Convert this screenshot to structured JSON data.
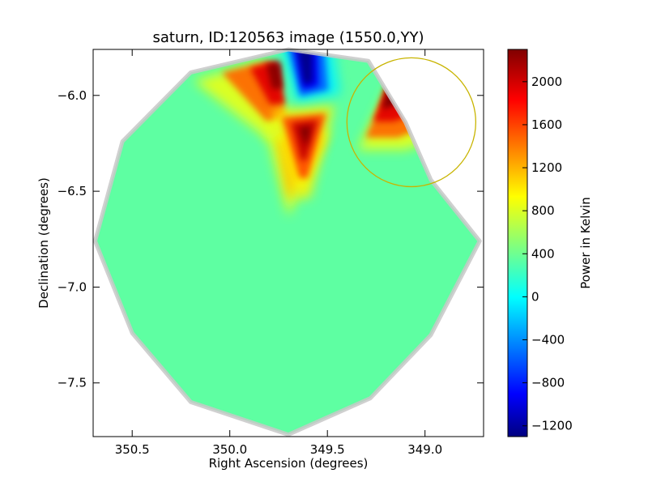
{
  "chart_data": {
    "type": "heatmap",
    "title": "saturn, ID:120563 image (1550.0,YY)",
    "xlabel": "Right Ascension (degrees)",
    "ylabel": "Declination (degrees)",
    "xlim": [
      350.7,
      348.7
    ],
    "ylim": [
      -7.78,
      -5.76
    ],
    "x_ticks": [
      350.5,
      350.0,
      349.5,
      349.0
    ],
    "x_tick_labels": [
      "350.5",
      "350.0",
      "349.5",
      "349.0"
    ],
    "y_ticks": [
      -6.0,
      -6.5,
      -7.0,
      -7.5
    ],
    "y_tick_labels": [
      "−6.0",
      "−6.5",
      "−7.0",
      "−7.5"
    ],
    "colorbar": {
      "label": "Power in Kelvin",
      "colormap": "jet",
      "range": [
        -1300,
        2300
      ],
      "ticks": [
        -1200,
        -800,
        -400,
        0,
        400,
        800,
        1200,
        1600,
        2000
      ],
      "tick_labels": [
        "−1200",
        "−800",
        "−400",
        "0",
        "400",
        "800",
        "1200",
        "1600",
        "2000"
      ]
    },
    "footprint": {
      "shape": "polygon",
      "center": [
        349.7,
        -6.76
      ],
      "background_value": 380,
      "vertices": [
        [
          349.7,
          -5.76
        ],
        [
          349.29,
          -5.82
        ],
        [
          349.1,
          -6.14
        ],
        [
          348.97,
          -6.44
        ],
        [
          348.72,
          -6.76
        ],
        [
          348.97,
          -7.25
        ],
        [
          349.28,
          -7.58
        ],
        [
          349.7,
          -7.77
        ],
        [
          350.2,
          -7.6
        ],
        [
          350.5,
          -7.24
        ],
        [
          350.69,
          -6.76
        ],
        [
          350.55,
          -6.24
        ],
        [
          350.2,
          -5.88
        ]
      ]
    },
    "features": [
      {
        "type": "min",
        "x": 349.62,
        "y": -5.93,
        "value": -1300
      },
      {
        "type": "max",
        "x": 349.75,
        "y": -5.86,
        "value": 2200
      },
      {
        "type": "max",
        "x": 349.61,
        "y": -6.22,
        "value": 2300
      },
      {
        "type": "max",
        "x": 349.18,
        "y": -6.03,
        "value": 2300
      }
    ],
    "circle": {
      "x": 349.07,
      "y": -6.14,
      "radius_deg": 0.33,
      "color": "#c8b400"
    }
  }
}
